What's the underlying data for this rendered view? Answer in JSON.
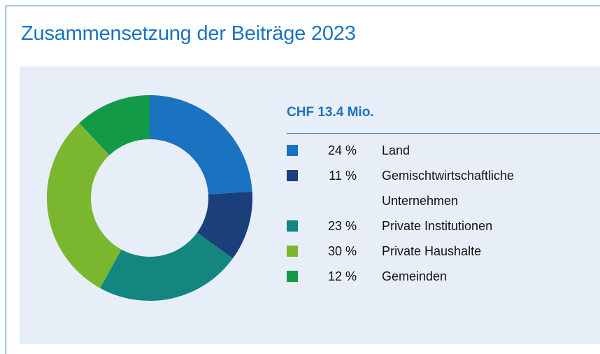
{
  "chart_data": {
    "type": "donut",
    "title": "Zusammensetzung der Beiträge 2023",
    "total_label": "CHF 13.4 Mio.",
    "categories": [
      "Land",
      "Gemischtwirtschaftliche Unternehmen",
      "Private Institutionen",
      "Private Haushalte",
      "Gemeinden"
    ],
    "values": [
      24,
      11,
      23,
      30,
      12
    ],
    "value_labels": [
      "24 %",
      "11 %",
      "23 %",
      "30 %",
      "12 %"
    ],
    "colors": [
      "#1a73c0",
      "#1b3f7a",
      "#13867f",
      "#7ab72e",
      "#139a47"
    ]
  }
}
